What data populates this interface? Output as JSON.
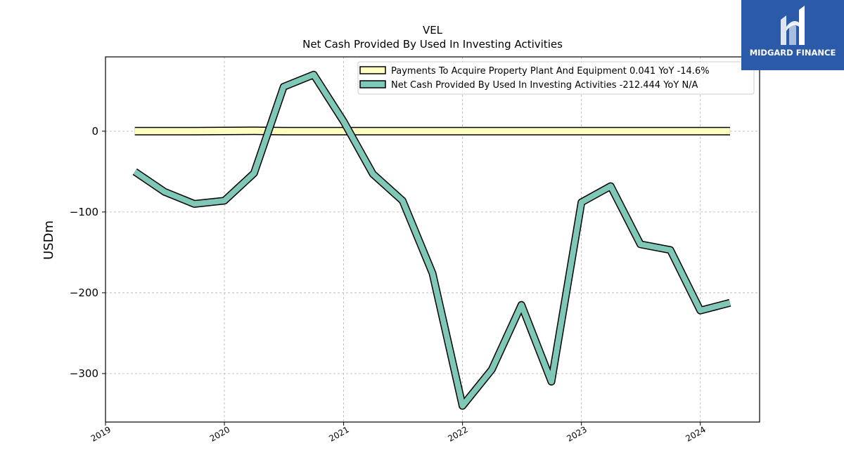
{
  "chart_data": {
    "type": "line",
    "title": "VEL",
    "subtitle": "Net Cash Provided By Used In Investing Activities",
    "ylabel": "USDm",
    "xlabel": "",
    "xlim": [
      "2019-01-01",
      "2024-07-01"
    ],
    "ylim": [
      -360,
      92
    ],
    "yticks": [
      0,
      -100,
      -200,
      -300
    ],
    "ytick_labels": [
      "0",
      "−100",
      "−200",
      "−300"
    ],
    "xticks": [
      "2019-01-01",
      "2020-01-01",
      "2021-01-01",
      "2022-01-01",
      "2023-01-01",
      "2024-01-01"
    ],
    "xtick_labels": [
      "2019",
      "2020",
      "2021",
      "2022",
      "2023",
      "2024"
    ],
    "grid": true,
    "legend_position": "top-right",
    "x": [
      "2019-04-01",
      "2019-07-01",
      "2019-10-01",
      "2020-01-01",
      "2020-04-01",
      "2020-07-01",
      "2020-10-01",
      "2021-01-01",
      "2021-04-01",
      "2021-07-01",
      "2021-10-01",
      "2022-01-01",
      "2022-04-01",
      "2022-07-01",
      "2022-10-01",
      "2023-01-01",
      "2023-04-01",
      "2023-07-01",
      "2023-10-01",
      "2024-01-01",
      "2024-04-01"
    ],
    "series": [
      {
        "name": "Payments To Acquire Property Plant And Equipment",
        "legend_label": "Payments To Acquire Property Plant And Equipment  0.041 YoY -14.6%",
        "color": "#ffffbf",
        "values": [
          0,
          0,
          0,
          0.3,
          0.5,
          0,
          0,
          0,
          0,
          0,
          0,
          0,
          0,
          0,
          0,
          0,
          0,
          0,
          0,
          0,
          0.041
        ]
      },
      {
        "name": "Net Cash Provided By Used In Investing Activities",
        "legend_label": "Net Cash Provided By Used In Investing Activities  -212.444 YoY N/A",
        "color": "#7fc8b8",
        "values": [
          -50,
          -75,
          -90,
          -86,
          -52,
          55,
          70,
          12,
          -53,
          -86,
          -176,
          -340,
          -295,
          -215,
          -310,
          -88,
          -68,
          -140,
          -147,
          -222,
          -212.444
        ]
      }
    ]
  },
  "logo": {
    "text": "MIDGARD FINANCE",
    "background": "#2a5aa8"
  }
}
